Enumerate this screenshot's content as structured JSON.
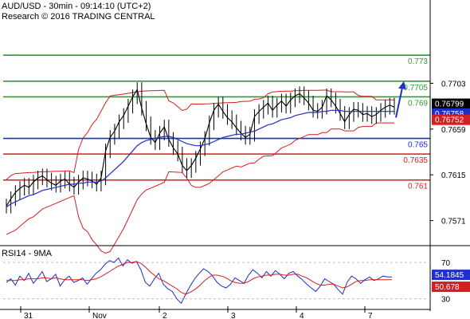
{
  "header": {
    "line1": "AUD/USD - 30min - 09:14:10 (UTC+2)",
    "line2": "Research © 2016 TRADING CENTRAL"
  },
  "chart_data": [
    {
      "type": "line",
      "ylim": [
        0.755,
        0.778
      ],
      "y_ticks": [
        "0.7703",
        "0.7659",
        "0.7615",
        "0.7571"
      ],
      "x_ticks": [
        "31",
        "Nov",
        "2",
        "3",
        "4",
        "7"
      ],
      "levels": [
        {
          "label": "0.773",
          "value": 0.773,
          "color": "#2e9e2e"
        },
        {
          "label": "0.7705",
          "value": 0.7705,
          "color": "#2e9e2e"
        },
        {
          "label": "0.769",
          "value": 0.769,
          "color": "#2e9e2e"
        },
        {
          "label": "0.765",
          "value": 0.765,
          "color": "#1f2fc8"
        },
        {
          "label": "0.7635",
          "value": 0.7635,
          "color": "#d21f1f"
        },
        {
          "label": "0.761",
          "value": 0.761,
          "color": "#d21f1f"
        }
      ],
      "price_tags": [
        {
          "label": "0.76799",
          "value": 0.76799,
          "bg": "#000000"
        },
        {
          "label": "0.76758",
          "value": 0.76758,
          "bg": "#1f2fc8"
        },
        {
          "label": "0.76752",
          "value": 0.76752,
          "bg": "#d21f1f"
        }
      ],
      "forecast_arrow": {
        "from": 0.767,
        "to": 0.7705,
        "color": "#1f2fc8"
      },
      "series": [
        {
          "color": "#000000",
          "values": [
            0.7585,
            0.7592,
            0.7598,
            0.7602,
            0.7605,
            0.7603,
            0.7608,
            0.7612,
            0.7614,
            0.761,
            0.7607,
            0.7605,
            0.7609,
            0.7611,
            0.7606,
            0.7603,
            0.7608,
            0.7612,
            0.7611,
            0.7609,
            0.7606,
            0.7612,
            0.7638,
            0.7651,
            0.7657,
            0.7666,
            0.7672,
            0.7681,
            0.769,
            0.7697,
            0.7679,
            0.7664,
            0.7651,
            0.7646,
            0.7655,
            0.7661,
            0.7649,
            0.7641,
            0.7635,
            0.7624,
            0.7619,
            0.7624,
            0.7631,
            0.764,
            0.765,
            0.7665,
            0.7677,
            0.7683,
            0.7676,
            0.767,
            0.7666,
            0.766,
            0.7655,
            0.7651,
            0.7654,
            0.7671,
            0.7676,
            0.768,
            0.7684,
            0.7677,
            0.7682,
            0.7686,
            0.7681,
            0.7687,
            0.7691,
            0.7693,
            0.7689,
            0.7684,
            0.7677,
            0.7676,
            0.768,
            0.7691,
            0.7687,
            0.7681,
            0.7674,
            0.7666,
            0.7673,
            0.7678,
            0.7677,
            0.7673,
            0.7674,
            0.7671,
            0.7673,
            0.7677,
            0.768,
            0.7682,
            0.768
          ]
        },
        {
          "color": "#1f2fc8",
          "values": [
            0.7584,
            0.7587,
            0.7589,
            0.7591,
            0.7593,
            0.7595,
            0.7596,
            0.7598,
            0.76,
            0.7601,
            0.7602,
            0.7603,
            0.7604,
            0.7605,
            0.7606,
            0.7606,
            0.7607,
            0.7607,
            0.7608,
            0.7608,
            0.7608,
            0.7609,
            0.7612,
            0.7616,
            0.762,
            0.7624,
            0.7628,
            0.7633,
            0.7638,
            0.7643,
            0.7646,
            0.7648,
            0.7649,
            0.765,
            0.7651,
            0.7652,
            0.7652,
            0.7651,
            0.7649,
            0.7647,
            0.7645,
            0.7644,
            0.7643,
            0.7643,
            0.7644,
            0.7645,
            0.7647,
            0.7649,
            0.7651,
            0.7652,
            0.7653,
            0.7654,
            0.7654,
            0.7655,
            0.7656,
            0.7657,
            0.7659,
            0.7661,
            0.7663,
            0.7664,
            0.7666,
            0.7668,
            0.7669,
            0.767,
            0.7672,
            0.7673,
            0.7674,
            0.7675,
            0.7675,
            0.7675,
            0.7676,
            0.7676,
            0.7677,
            0.7677,
            0.7677,
            0.7676,
            0.7676,
            0.7676,
            0.7676,
            0.7676,
            0.7676,
            0.7676,
            0.7676,
            0.7676,
            0.7676,
            0.7676,
            0.7676
          ]
        }
      ]
    },
    {
      "type": "line",
      "title": "RSI14 - 9MA",
      "ylim": [
        20,
        85
      ],
      "y_ticks": [
        "70",
        "30"
      ],
      "value_tags": [
        {
          "label": "54.1845",
          "value": 54.18,
          "bg": "#1f2fc8"
        },
        {
          "label": "50.678",
          "value": 50.68,
          "bg": "#d21f1f"
        }
      ],
      "series": [
        {
          "color": "#1f2fc8",
          "values": [
            48,
            52,
            45,
            55,
            50,
            58,
            47,
            53,
            60,
            49,
            52,
            57,
            44,
            51,
            55,
            48,
            50,
            53,
            46,
            52,
            58,
            62,
            68,
            72,
            70,
            75,
            66,
            73,
            69,
            71,
            62,
            48,
            44,
            52,
            58,
            46,
            41,
            38,
            30,
            25,
            35,
            44,
            52,
            58,
            63,
            60,
            55,
            48,
            44,
            42,
            46,
            53,
            50,
            47,
            56,
            62,
            58,
            53,
            60,
            55,
            61,
            57,
            52,
            58,
            60,
            55,
            51,
            46,
            42,
            38,
            44,
            52,
            49,
            46,
            40,
            35,
            48,
            55,
            52,
            47,
            51,
            54,
            50,
            52,
            55,
            54,
            54
          ]
        },
        {
          "color": "#d21f1f",
          "values": [
            50,
            50,
            50,
            51,
            51,
            52,
            52,
            52,
            53,
            53,
            52,
            53,
            52,
            51,
            51,
            51,
            51,
            51,
            50,
            51,
            52,
            54,
            57,
            60,
            63,
            66,
            68,
            70,
            70,
            71,
            69,
            65,
            60,
            56,
            52,
            50,
            47,
            44,
            41,
            37,
            35,
            37,
            40,
            44,
            49,
            53,
            56,
            56,
            55,
            53,
            50,
            48,
            47,
            47,
            49,
            52,
            54,
            55,
            56,
            56,
            57,
            57,
            56,
            56,
            57,
            57,
            55,
            53,
            50,
            47,
            45,
            45,
            46,
            46,
            44,
            42,
            43,
            46,
            49,
            50,
            50,
            51,
            51,
            51,
            51,
            51,
            51
          ]
        }
      ]
    }
  ]
}
